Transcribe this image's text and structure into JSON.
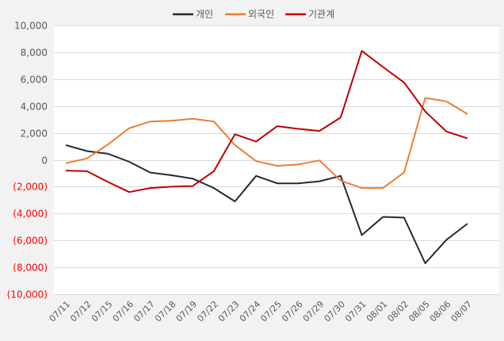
{
  "chart_data": {
    "type": "line",
    "title": "",
    "xlabel": "",
    "ylabel": "",
    "ylim": [
      -10000,
      10000
    ],
    "ytick_step": 2000,
    "grid": true,
    "legend_position": "top",
    "categories": [
      "07/11",
      "07/12",
      "07/15",
      "07/16",
      "07/17",
      "07/18",
      "07/19",
      "07/22",
      "07/23",
      "07/24",
      "07/25",
      "07/26",
      "07/29",
      "07/30",
      "07/31",
      "08/01",
      "08/02",
      "08/05",
      "08/06",
      "08/07"
    ],
    "yticks": [
      {
        "value": 10000,
        "label": "10,000"
      },
      {
        "value": 8000,
        "label": "8,000"
      },
      {
        "value": 6000,
        "label": "6,000"
      },
      {
        "value": 4000,
        "label": "4,000"
      },
      {
        "value": 2000,
        "label": "2,000"
      },
      {
        "value": 0,
        "label": "0"
      },
      {
        "value": -2000,
        "label": "(2,000)"
      },
      {
        "value": -4000,
        "label": "(4,000)"
      },
      {
        "value": -6000,
        "label": "(6,000)"
      },
      {
        "value": -8000,
        "label": "(8,000)"
      },
      {
        "value": -10000,
        "label": "(10,000)"
      }
    ],
    "series": [
      {
        "name": "개인",
        "color": "#222a35",
        "values": [
          1100,
          650,
          450,
          -150,
          -950,
          -1150,
          -1400,
          -2100,
          -3100,
          -1200,
          -1750,
          -1750,
          -1600,
          -1200,
          -5600,
          -4250,
          -4300,
          -7700,
          -5950,
          -4750
        ]
      },
      {
        "name": "외국인",
        "color": "#ed7d31",
        "values": [
          -250,
          100,
          1150,
          2350,
          2850,
          2900,
          3050,
          2850,
          1100,
          -100,
          -450,
          -350,
          -50,
          -1550,
          -2100,
          -2100,
          -950,
          4600,
          4350,
          3400
        ]
      },
      {
        "name": "기관계",
        "color": "#c00000",
        "values": [
          -800,
          -850,
          -1650,
          -2400,
          -2100,
          -2000,
          -1950,
          -850,
          1900,
          1350,
          2500,
          2300,
          2150,
          3150,
          8100,
          6900,
          5750,
          3600,
          2100,
          1600
        ]
      }
    ]
  },
  "colors": {
    "background": "#f2f2f2",
    "plot_background": "#ffffff",
    "gridline": "#d9d9d9",
    "positive_tick": "#595959",
    "negative_tick": "#ff0000",
    "x_tick": "#595959",
    "legend_text": "#595959"
  }
}
